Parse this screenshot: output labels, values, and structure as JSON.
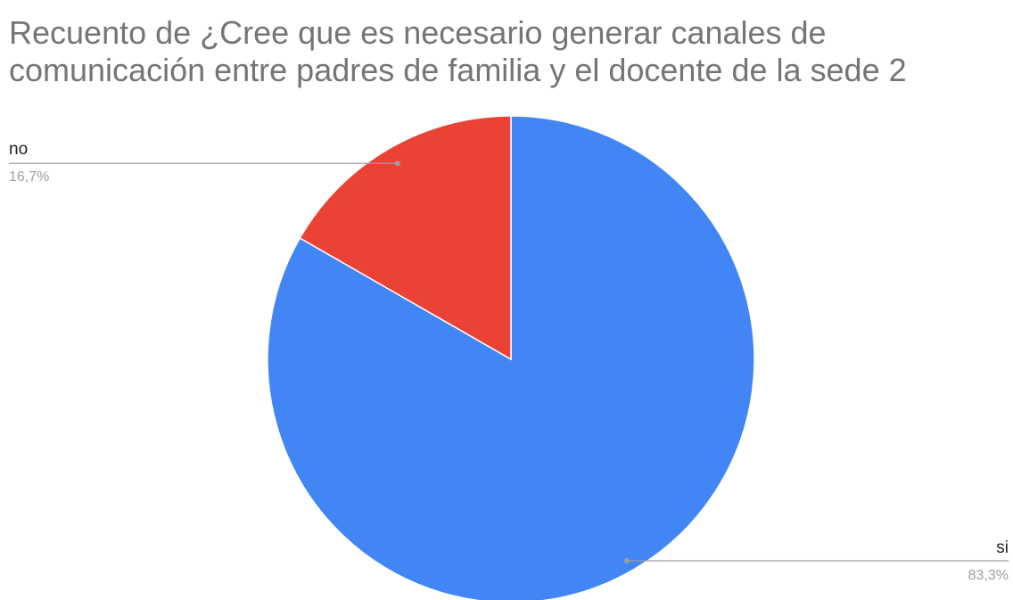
{
  "chart_data": {
    "type": "pie",
    "title_lines": [
      "Recuento de ¿Cree que es necesario generar canales de",
      "comunicación entre padres de familia y el docente de la sede 2"
    ],
    "slices": [
      {
        "label": "si",
        "value": 83.3,
        "percent_label": "83,3%",
        "color": "#4285f4"
      },
      {
        "label": "no",
        "value": 16.7,
        "percent_label": "16,7%",
        "color": "#ea4335"
      }
    ],
    "start_angle_deg": 0,
    "direction": "clockwise",
    "leader_line_color": "#9e9e9e",
    "slice_border_color": "#ffffff"
  }
}
